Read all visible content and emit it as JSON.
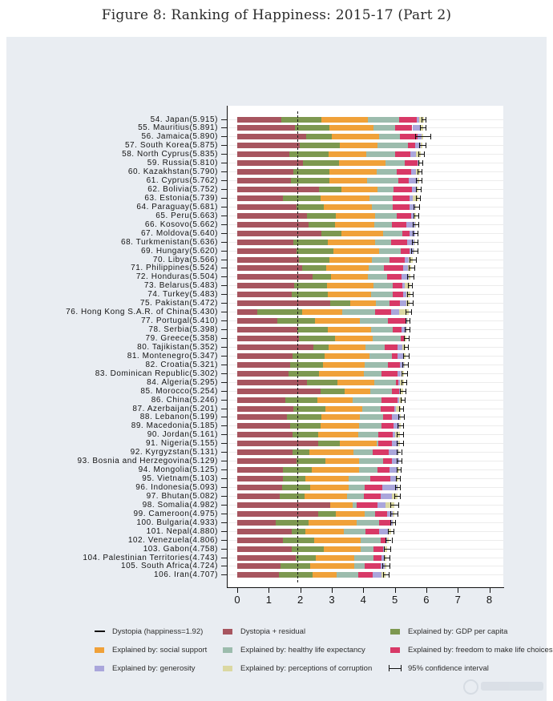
{
  "title": "Figure 8: Ranking of Happiness: 2015-17 (Part 2)",
  "colors": {
    "background_panel": "#e9edf2",
    "plot_background": "#ffffff",
    "gridline": "#ececec",
    "axis": "#111111",
    "dystopia_residual": "#a7555f",
    "gdp": "#7d9850",
    "social_support": "#f0a139",
    "healthy_life_expectancy": "#9cbcad",
    "freedom": "#d83967",
    "generosity": "#aaa6db",
    "corruption": "#dbd8a2",
    "ci": "#111111"
  },
  "legend": {
    "items": [
      {
        "label": "Dystopia (happiness=1.92)",
        "swatch": "line",
        "color": "#111111"
      },
      {
        "label": "Dystopia + residual",
        "swatch": "box",
        "color": "#a7555f"
      },
      {
        "label": "Explained by: GDP per capita",
        "swatch": "box",
        "color": "#7d9850"
      },
      {
        "label": "Explained by: social support",
        "swatch": "box",
        "color": "#f0a139"
      },
      {
        "label": "Explained by: healthy life expectancy",
        "swatch": "box",
        "color": "#9cbcad"
      },
      {
        "label": "Explained by: freedom to make life choices",
        "swatch": "box",
        "color": "#d83967"
      },
      {
        "label": "Explained by: generosity",
        "swatch": "box",
        "color": "#aaa6db"
      },
      {
        "label": "Explained by: perceptions of corruption",
        "swatch": "box",
        "color": "#dbd8a2"
      },
      {
        "label": "95% confidence interval",
        "swatch": "ci",
        "color": "#111111"
      }
    ]
  },
  "chart_data": {
    "type": "bar",
    "orientation": "horizontal-stacked",
    "title": "Figure 8: Ranking of Happiness: 2015-17 (Part 2)",
    "xlabel": "",
    "ylabel": "",
    "xlim": [
      0,
      8
    ],
    "x_ticks": [
      0,
      1,
      2,
      3,
      4,
      5,
      6,
      7,
      8
    ],
    "grid": "horizontal-faint",
    "reference_line": {
      "label": "Dystopia (happiness=1.92)",
      "value": 1.92
    },
    "series_order": [
      "dystopia_residual",
      "gdp",
      "social_support",
      "healthy_life_expectancy",
      "freedom",
      "generosity",
      "corruption"
    ],
    "rows_columns": [
      "rank",
      "country",
      "score",
      "segments(dystopia_residual,gdp,social_support,healthy_life_expectancy,freedom,generosity,corruption)",
      "ci_halfwidth"
    ],
    "rows": [
      [
        54,
        "Japan",
        5.915,
        [
          1.389,
          1.294,
          1.462,
          0.988,
          0.553,
          0.079,
          0.15
        ],
        0.07
      ],
      [
        55,
        "Mauritius",
        5.891,
        [
          1.838,
          1.09,
          1.387,
          0.684,
          0.558,
          0.245,
          0.089
        ],
        0.09
      ],
      [
        56,
        "Jamaica",
        5.89,
        [
          2.191,
          0.819,
          1.493,
          0.648,
          0.575,
          0.136,
          0.028
        ],
        0.24
      ],
      [
        57,
        "South Korea",
        5.875,
        [
          1.98,
          1.266,
          1.204,
          0.955,
          0.244,
          0.175,
          0.051
        ],
        0.09
      ],
      [
        58,
        "North Cyprus",
        5.835,
        [
          1.658,
          1.229,
          1.211,
          0.909,
          0.495,
          0.179,
          0.154
        ],
        0.1
      ],
      [
        59,
        "Russia",
        5.81,
        [
          2.085,
          1.151,
          1.479,
          0.599,
          0.399,
          0.065,
          0.032
        ],
        0.06
      ],
      [
        60,
        "Kazakhstan",
        5.79,
        [
          1.777,
          1.143,
          1.516,
          0.631,
          0.454,
          0.148,
          0.121
        ],
        0.07
      ],
      [
        61,
        "Cyprus",
        5.762,
        [
          1.702,
          1.229,
          1.191,
          0.999,
          0.334,
          0.266,
          0.041
        ],
        0.09
      ],
      [
        62,
        "Bolivia",
        5.752,
        [
          2.592,
          0.71,
          1.157,
          0.509,
          0.571,
          0.144,
          0.069
        ],
        0.08
      ],
      [
        63,
        "Estonia",
        5.739,
        [
          1.457,
          1.2,
          1.532,
          0.737,
          0.553,
          0.086,
          0.174
        ],
        0.07
      ],
      [
        64,
        "Paraguay",
        5.681,
        [
          1.892,
          0.855,
          1.52,
          0.662,
          0.547,
          0.168,
          0.037
        ],
        0.09
      ],
      [
        65,
        "Peru",
        5.663,
        [
          2.214,
          0.914,
          1.249,
          0.687,
          0.463,
          0.094,
          0.042
        ],
        0.08
      ],
      [
        66,
        "Kosovo",
        5.662,
        [
          2.254,
          0.855,
          1.23,
          0.578,
          0.448,
          0.274,
          0.023
        ],
        0.08
      ],
      [
        67,
        "Moldova",
        5.64,
        [
          2.659,
          0.657,
          1.301,
          0.62,
          0.232,
          0.171,
          0.0
        ],
        0.08
      ],
      [
        68,
        "Turkmenistan",
        5.636,
        [
          1.783,
          1.092,
          1.512,
          0.502,
          0.502,
          0.217,
          0.028
        ],
        0.09
      ],
      [
        69,
        "Hungary",
        5.62,
        [
          1.882,
          1.171,
          1.448,
          0.684,
          0.286,
          0.121,
          0.028
        ],
        0.09
      ],
      [
        70,
        "Libya",
        5.566,
        [
          1.949,
          0.985,
          1.35,
          0.553,
          0.491,
          0.115,
          0.123
        ],
        0.11
      ],
      [
        71,
        "Philippines",
        5.524,
        [
          2.061,
          0.764,
          1.344,
          0.492,
          0.613,
          0.151,
          0.099
        ],
        0.09
      ],
      [
        72,
        "Honduras",
        5.504,
        [
          2.383,
          0.581,
          1.193,
          0.598,
          0.46,
          0.232,
          0.057
        ],
        0.1
      ],
      [
        73,
        "Belarus",
        5.483,
        [
          1.818,
          1.039,
          1.463,
          0.622,
          0.291,
          0.082,
          0.168
        ],
        0.07
      ],
      [
        74,
        "Turkey",
        5.483,
        [
          1.73,
          1.148,
          1.38,
          0.686,
          0.324,
          0.106,
          0.109
        ],
        0.09
      ],
      [
        75,
        "Pakistan",
        5.472,
        [
          2.938,
          0.652,
          0.81,
          0.424,
          0.334,
          0.216,
          0.098
        ],
        0.09
      ],
      [
        76,
        "Hong Kong S.A.R. of China",
        5.43,
        [
          0.644,
          1.405,
          1.29,
          1.03,
          0.524,
          0.246,
          0.291
        ],
        0.08
      ],
      [
        77,
        "Portugal",
        5.41,
        [
          1.274,
          1.189,
          1.429,
          0.884,
          0.562,
          0.055,
          0.017
        ],
        0.07
      ],
      [
        78,
        "Serbia",
        5.398,
        [
          1.904,
          0.975,
          1.369,
          0.685,
          0.288,
          0.134,
          0.043
        ],
        0.08
      ],
      [
        79,
        "Greece",
        5.358,
        [
          1.948,
          1.154,
          1.202,
          0.879,
          0.131,
          0.0,
          0.044
        ],
        0.08
      ],
      [
        80,
        "Tajikistan",
        5.352,
        [
          2.423,
          0.474,
          1.175,
          0.598,
          0.406,
          0.173,
          0.103
        ],
        0.07
      ],
      [
        81,
        "Montenegro",
        5.347,
        [
          1.743,
          1.024,
          1.441,
          0.688,
          0.2,
          0.163,
          0.088
        ],
        0.09
      ],
      [
        82,
        "Croatia",
        5.321,
        [
          1.674,
          1.058,
          1.313,
          0.737,
          0.38,
          0.12,
          0.039
        ],
        0.09
      ],
      [
        83,
        "Dominican Republic",
        5.302,
        [
          1.624,
          0.982,
          1.41,
          0.573,
          0.499,
          0.113,
          0.101
        ],
        0.1
      ],
      [
        84,
        "Algeria",
        5.295,
        [
          2.208,
          0.979,
          1.154,
          0.687,
          0.077,
          0.055,
          0.135
        ],
        0.08
      ],
      [
        85,
        "Morocco",
        5.254,
        [
          2.648,
          0.758,
          0.822,
          0.668,
          0.253,
          0.032,
          0.073
        ],
        0.09
      ],
      [
        86,
        "China",
        5.246,
        [
          1.52,
          1.029,
          1.125,
          0.893,
          0.521,
          0.058,
          0.1
        ],
        0.06
      ],
      [
        87,
        "Azerbaijan",
        5.201,
        [
          1.772,
          1.024,
          1.161,
          0.603,
          0.43,
          0.035,
          0.176
        ],
        0.07
      ],
      [
        88,
        "Lebanon",
        5.199,
        [
          1.585,
          1.074,
          1.229,
          0.735,
          0.288,
          0.264,
          0.024
        ],
        0.09
      ],
      [
        89,
        "Macedonia",
        5.185,
        [
          1.677,
          0.959,
          1.239,
          0.691,
          0.394,
          0.173,
          0.052
        ],
        0.09
      ],
      [
        90,
        "Jordan",
        5.161,
        [
          1.743,
          0.822,
          1.265,
          0.645,
          0.462,
          0.083,
          0.141
        ],
        0.1
      ],
      [
        91,
        "Nigeria",
        5.155,
        [
          2.569,
          0.689,
          1.172,
          0.043,
          0.426,
          0.215,
          0.041
        ],
        0.1
      ],
      [
        92,
        "Kyrgyzstan",
        5.131,
        [
          1.754,
          0.53,
          1.4,
          0.618,
          0.5,
          0.3,
          0.029
        ],
        0.07
      ],
      [
        93,
        "Bosnia and Herzegovina",
        5.129,
        [
          1.882,
          0.915,
          1.078,
          0.758,
          0.28,
          0.216,
          0.0
        ],
        0.08
      ],
      [
        94,
        "Mongolia",
        5.125,
        [
          1.439,
          0.914,
          1.517,
          0.575,
          0.395,
          0.253,
          0.032
        ],
        0.07
      ],
      [
        95,
        "Vietnam",
        5.103,
        [
          1.447,
          0.715,
          1.365,
          0.702,
          0.618,
          0.177,
          0.079
        ],
        0.07
      ],
      [
        96,
        "Indonesia",
        5.093,
        [
          1.417,
          0.899,
          1.215,
          0.522,
          0.538,
          0.484,
          0.018
        ],
        0.08
      ],
      [
        97,
        "Bhutan",
        5.082,
        [
          1.348,
          0.796,
          1.335,
          0.527,
          0.541,
          0.364,
          0.171
        ],
        0.09
      ],
      [
        98,
        "Somalia",
        4.982,
        [
          2.961,
          0.0,
          0.712,
          0.115,
          0.674,
          0.238,
          0.282
        ],
        0.12
      ],
      [
        99,
        "Cameroon",
        4.975,
        [
          2.58,
          0.549,
          0.91,
          0.331,
          0.381,
          0.187,
          0.037
        ],
        0.11
      ],
      [
        100,
        "Bulgaria",
        4.933,
        [
          1.22,
          1.054,
          1.515,
          0.712,
          0.359,
          0.064,
          0.009
        ],
        0.08
      ],
      [
        101,
        "Nepal",
        4.88,
        [
          1.718,
          0.446,
          1.226,
          0.677,
          0.439,
          0.285,
          0.089
        ],
        0.09
      ],
      [
        102,
        "Venezuela",
        4.806,
        [
          1.443,
          0.996,
          1.469,
          0.657,
          0.133,
          0.056,
          0.052
        ],
        0.09
      ],
      [
        103,
        "Gabon",
        4.758,
        [
          1.723,
          1.036,
          1.162,
          0.406,
          0.312,
          0.043,
          0.076
        ],
        0.1
      ],
      [
        104,
        "Palestinian Territories",
        4.743,
        [
          1.854,
          0.642,
          1.217,
          0.602,
          0.266,
          0.086,
          0.076
        ],
        0.08
      ],
      [
        105,
        "South Africa",
        4.724,
        [
          1.369,
          0.94,
          1.41,
          0.33,
          0.516,
          0.103,
          0.056
        ],
        0.11
      ],
      [
        106,
        "Iran",
        4.707,
        [
          1.32,
          1.059,
          0.771,
          0.691,
          0.459,
          0.282,
          0.125
        ],
        0.09
      ]
    ]
  }
}
